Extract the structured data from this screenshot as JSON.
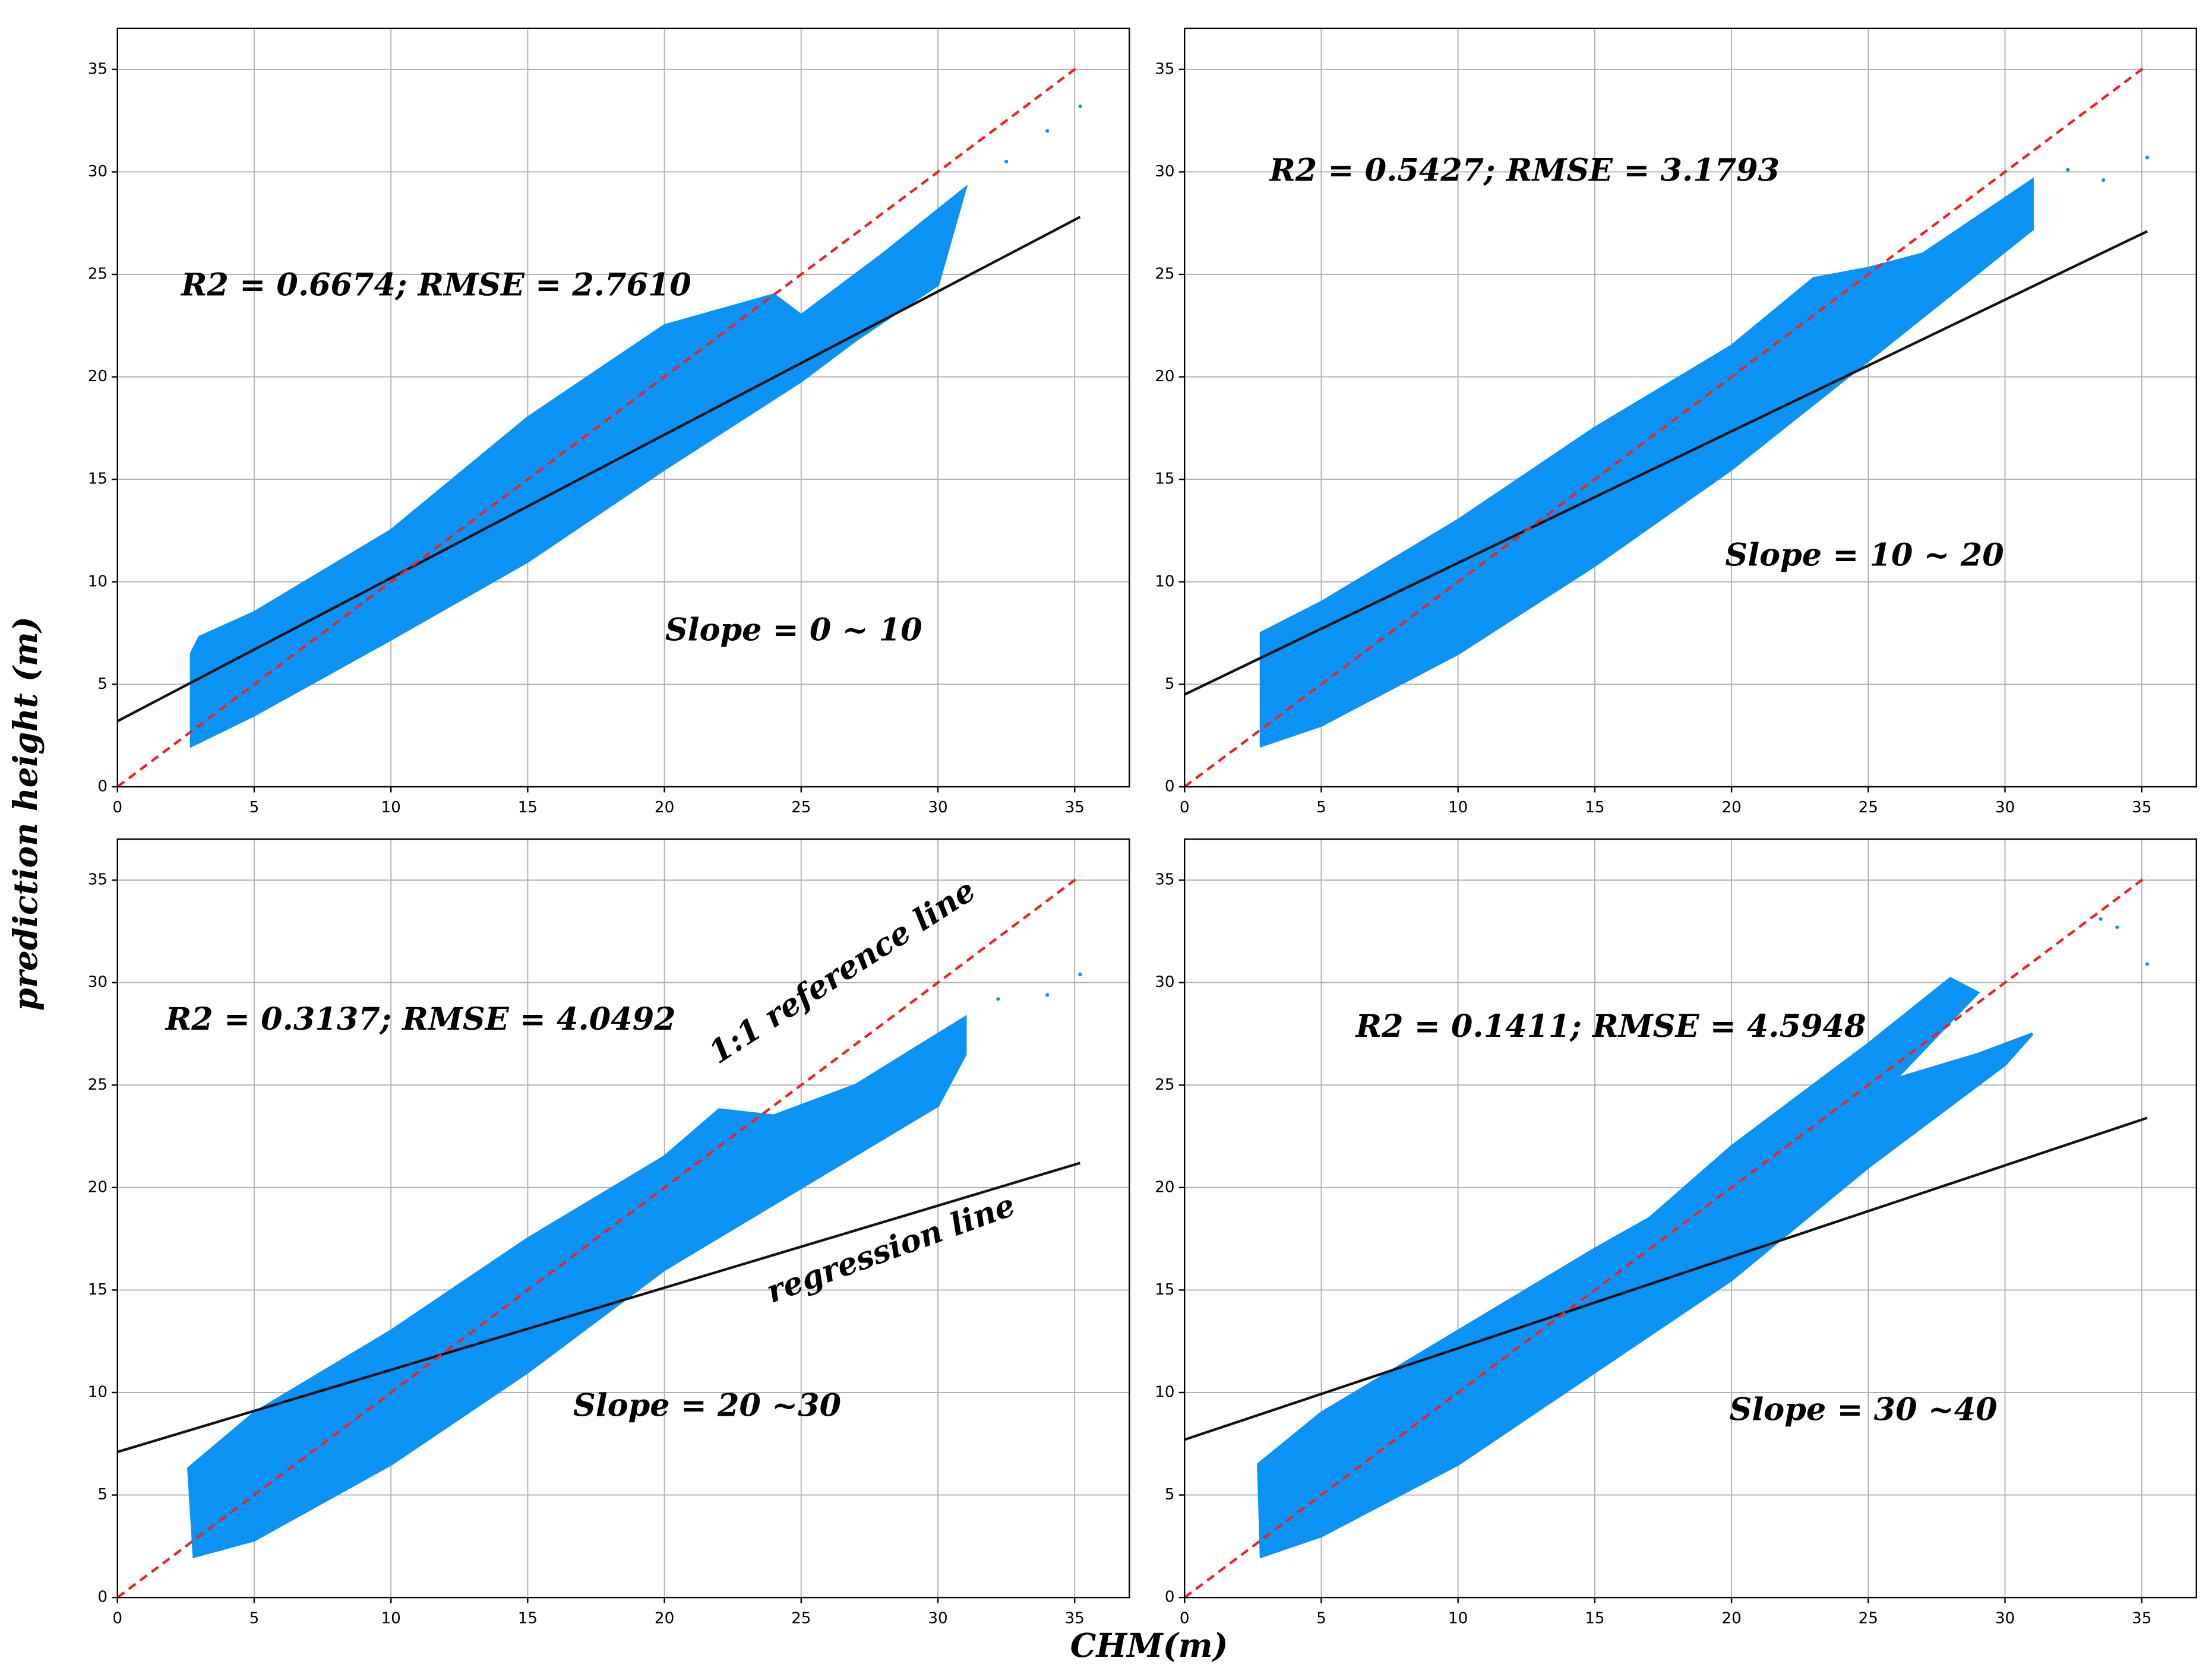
{
  "xlabel": "CHM(m)",
  "ylabel": "prediction height (m)",
  "chart_data": [
    {
      "type": "scatter",
      "xlim": [
        0,
        37
      ],
      "ylim": [
        0,
        37
      ],
      "xticks": [
        0,
        5,
        10,
        15,
        20,
        25,
        30,
        35
      ],
      "yticks": [
        0,
        5,
        10,
        15,
        20,
        25,
        30,
        35
      ],
      "grid": true,
      "annotations": [
        "R2 = 0.6674; RMSE = 2.7610",
        "Slope = 0 ~ 10"
      ],
      "cloud": {
        "color": "#0a93f5",
        "x": [
          2.7,
          5,
          10,
          15,
          20,
          25,
          27,
          30,
          31,
          28,
          25,
          24,
          20,
          15,
          10,
          5,
          3,
          2.7
        ],
        "y": [
          2.0,
          3.5,
          7.2,
          11,
          15.5,
          19.8,
          21.8,
          24.5,
          29.2,
          26,
          23,
          24,
          22.5,
          18,
          12.5,
          8.5,
          7.3,
          6.5
        ]
      },
      "outliers": {
        "color": "#0a93f5",
        "x": [
          35.2,
          34,
          32.5
        ],
        "y": [
          33.2,
          32,
          30.5
        ]
      },
      "reference_line": {
        "color": "#ee2222",
        "x": [
          0,
          35.2
        ],
        "y": [
          0,
          35.2
        ]
      },
      "regression_line": {
        "color": "#111111",
        "x": [
          0,
          35.2
        ],
        "y": [
          3.2,
          27.8
        ]
      }
    },
    {
      "type": "scatter",
      "xlim": [
        0,
        37
      ],
      "ylim": [
        0,
        37
      ],
      "xticks": [
        0,
        5,
        10,
        15,
        20,
        25,
        30,
        35
      ],
      "yticks": [
        0,
        5,
        10,
        15,
        20,
        25,
        30,
        35
      ],
      "grid": true,
      "annotations": [
        "R2 = 0.5427; RMSE = 3.1793",
        "Slope = 10 ~ 20"
      ],
      "cloud": {
        "color": "#0a93f5",
        "x": [
          2.8,
          5,
          10,
          15,
          20,
          25,
          28,
          31,
          31,
          27,
          25,
          23,
          20,
          15,
          10,
          5,
          2.8
        ],
        "y": [
          2,
          3,
          6.5,
          10.8,
          15.5,
          20.8,
          24,
          27.2,
          29.6,
          26,
          25.3,
          24.8,
          21.5,
          17.5,
          13,
          9,
          7.5
        ]
      },
      "outliers": {
        "color": "#0a93f5",
        "x": [
          35.2,
          33.6,
          32.3
        ],
        "y": [
          30.7,
          29.6,
          30.1
        ]
      },
      "reference_line": {
        "color": "#ee2222",
        "x": [
          0,
          35.2
        ],
        "y": [
          0,
          35.2
        ]
      },
      "regression_line": {
        "color": "#111111",
        "x": [
          0,
          35.2
        ],
        "y": [
          4.5,
          27.1
        ]
      }
    },
    {
      "type": "scatter",
      "xlim": [
        0,
        37
      ],
      "ylim": [
        0,
        37
      ],
      "xticks": [
        0,
        5,
        10,
        15,
        20,
        25,
        30,
        35
      ],
      "yticks": [
        0,
        5,
        10,
        15,
        20,
        25,
        30,
        35
      ],
      "grid": true,
      "annotations": [
        "R2 = 0.3137; RMSE = 4.0492",
        "Slope = 20 ~30",
        "1:1 reference line",
        "regression line"
      ],
      "cloud": {
        "color": "#0a93f5",
        "x": [
          2.8,
          5,
          10,
          15,
          20,
          25,
          30,
          31,
          31,
          27,
          24,
          22,
          20,
          15,
          10,
          5,
          2.6
        ],
        "y": [
          2,
          2.8,
          6.5,
          11,
          16,
          20,
          24,
          26.5,
          28.3,
          25,
          23.5,
          23.8,
          21.5,
          17.5,
          13,
          9,
          6.3
        ]
      },
      "outliers": {
        "color": "#0a93f5",
        "x": [
          35.2,
          34,
          32.2
        ],
        "y": [
          30.4,
          29.4,
          29.2
        ]
      },
      "reference_line": {
        "color": "#ee2222",
        "x": [
          0,
          35.2
        ],
        "y": [
          0,
          35.2
        ]
      },
      "regression_line": {
        "color": "#111111",
        "x": [
          0,
          35.2
        ],
        "y": [
          7.1,
          21.2
        ]
      }
    },
    {
      "type": "scatter",
      "xlim": [
        0,
        37
      ],
      "ylim": [
        0,
        37
      ],
      "xticks": [
        0,
        5,
        10,
        15,
        20,
        25,
        30,
        35
      ],
      "yticks": [
        0,
        5,
        10,
        15,
        20,
        25,
        30,
        35
      ],
      "grid": true,
      "annotations": [
        "R2 = 0.1411; RMSE = 4.5948",
        "Slope = 30 ~40"
      ],
      "cloud": {
        "color": "#0a93f5",
        "x": [
          2.8,
          5,
          10,
          15,
          20,
          25,
          30,
          31,
          29,
          26,
          29,
          28,
          25,
          20,
          17,
          15,
          10,
          5,
          2.7
        ],
        "y": [
          2,
          3,
          6.5,
          11,
          15.5,
          21,
          26,
          27.5,
          26.5,
          25.3,
          29.5,
          30.2,
          27,
          22,
          18.5,
          17,
          13,
          9,
          6.5
        ]
      },
      "outliers": {
        "color": "#0a93f5",
        "x": [
          35.2,
          34.1,
          33.5
        ],
        "y": [
          30.9,
          32.7,
          33.1
        ]
      },
      "reference_line": {
        "color": "#ee2222",
        "x": [
          0,
          35.2
        ],
        "y": [
          0,
          35.2
        ]
      },
      "regression_line": {
        "color": "#111111",
        "x": [
          0,
          35.2
        ],
        "y": [
          7.7,
          23.4
        ]
      }
    }
  ]
}
